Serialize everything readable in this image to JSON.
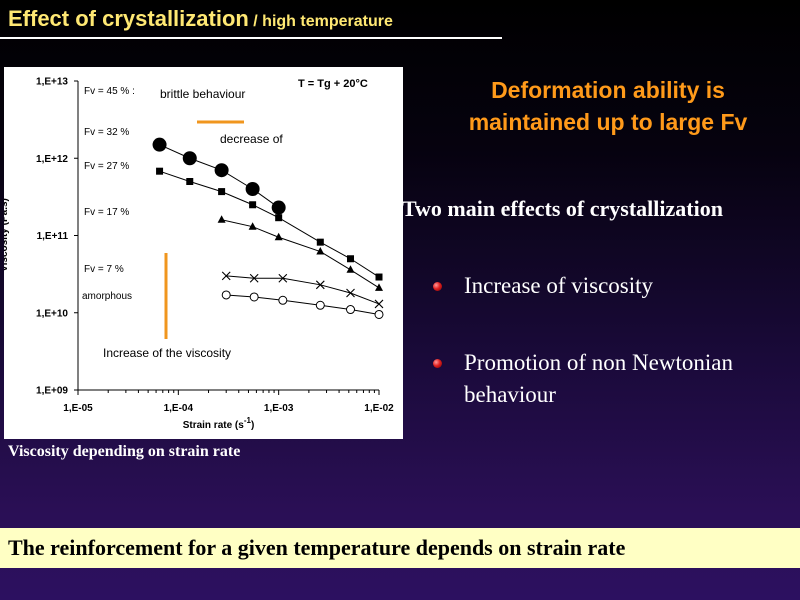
{
  "slide": {
    "title_main": "Effect of crystallization",
    "title_sub": " / high temperature",
    "caption": "Viscosity depending on strain rate",
    "orange_heading_line1": "Deformation ability is",
    "orange_heading_line2": "maintained up to large Fv",
    "effects_heading": "Two main effects of crystallization",
    "bullets": [
      "Increase of viscosity",
      "Promotion of non Newtonian behaviour"
    ],
    "banner": "The reinforcement for a given temperature depends on strain rate",
    "colors": {
      "title": "#ffe873",
      "orange": "#ff9a1a",
      "banner_bg": "#ffffc4",
      "bullet": "#e02020"
    }
  },
  "chart_data": {
    "type": "scatter",
    "x_scale": "log",
    "y_scale": "log",
    "xlim": [
      1e-05,
      0.01
    ],
    "ylim": [
      1000000000,
      10000000000000
    ],
    "xlabel": "Strain rate (s",
    "xlabel_sup": "-1",
    "xlabel_close": ")",
    "ylabel": "Viscosity (Pa.s)",
    "x_ticks": [
      {
        "value": 1e-05,
        "label": "1,E-05"
      },
      {
        "value": 0.0001,
        "label": "1,E-04"
      },
      {
        "value": 0.001,
        "label": "1,E-03"
      },
      {
        "value": 0.01,
        "label": "1,E-02"
      }
    ],
    "y_ticks": [
      {
        "value": 1000000000,
        "label": "1,E+09"
      },
      {
        "value": 10000000000,
        "label": "1,E+10"
      },
      {
        "value": 100000000000,
        "label": "1,E+11"
      },
      {
        "value": 1000000000000,
        "label": "1,E+12"
      },
      {
        "value": 10000000000000,
        "label": "1,E+13"
      }
    ],
    "condition": "T = Tg + 20°C",
    "series": [
      {
        "name": "Fv = 45 %",
        "marker": "big-circle",
        "x": [
          6.5e-05,
          0.00013,
          0.00027,
          0.00055,
          0.001
        ],
        "y": [
          1500000000000,
          1000000000000,
          700000000000,
          400000000000,
          230000000000
        ]
      },
      {
        "name": "Fv = 32 %",
        "marker": "square",
        "x": [
          6.5e-05,
          0.00013,
          0.00027,
          0.00055,
          0.001,
          0.0026,
          0.0052,
          0.01
        ],
        "y": [
          680000000000,
          500000000000,
          370000000000,
          250000000000,
          170000000000,
          82000000000,
          50000000000,
          29000000000
        ]
      },
      {
        "name": "Fv = 27 %",
        "marker": "triangle",
        "x": [
          0.00027,
          0.00055,
          0.001,
          0.0026,
          0.0052,
          0.01
        ],
        "y": [
          160000000000,
          130000000000,
          95000000000,
          62000000000,
          36000000000,
          21000000000
        ]
      },
      {
        "name": "Fv = 17 %",
        "marker": "x",
        "x": [
          0.0003,
          0.00057,
          0.0011,
          0.0026,
          0.0052,
          0.01
        ],
        "y": [
          30000000000,
          28000000000,
          28000000000,
          23000000000,
          18000000000,
          13000000000
        ]
      },
      {
        "name": "Fv = 7 %",
        "marker": "open-circle",
        "x": [
          0.0003,
          0.00057,
          0.0011,
          0.0026,
          0.0052,
          0.01
        ],
        "y": [
          17000000000,
          16000000000,
          14500000000,
          12500000000,
          11000000000,
          9500000000
        ]
      }
    ],
    "annotations": {
      "brittle": "brittle behaviour",
      "decrease": "decrease of",
      "amorphous": "amorphous",
      "increase": "Increase of the viscosity"
    }
  }
}
